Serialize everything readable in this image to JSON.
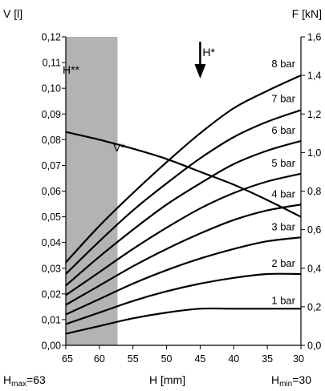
{
  "chart_data": {
    "type": "line",
    "x_label": "H [mm]",
    "x_ticks": [
      65,
      60,
      55,
      50,
      45,
      40,
      35,
      30
    ],
    "x_range": [
      65,
      30
    ],
    "y_left_label": "V [l]",
    "y_left_ticks": [
      "0,00",
      "0,01",
      "0,02",
      "0,03",
      "0,04",
      "0,05",
      "0,06",
      "0,07",
      "0,08",
      "0,09",
      "0,10",
      "0,11",
      "0,12"
    ],
    "y_left_range": [
      0,
      0.12
    ],
    "y_right_label": "F [kN]",
    "y_right_ticks": [
      "0,0",
      "0,2",
      "0,4",
      "0,6",
      "0,8",
      "1,0",
      "1,2",
      "1,4",
      "1,6"
    ],
    "y_right_range": [
      0,
      1.6
    ],
    "shaded_region": {
      "label": "H**",
      "x_from": 65,
      "x_to": 57.3,
      "color": "#b3b3b3"
    },
    "marker": {
      "label": "H*",
      "x": 45
    },
    "volume_curve": {
      "name": "V*",
      "axis": "left",
      "x": [
        65,
        60,
        55,
        50,
        45,
        40,
        35,
        30
      ],
      "y": [
        0.083,
        0.08,
        0.0765,
        0.0725,
        0.0675,
        0.0625,
        0.0565,
        0.05
      ]
    },
    "force_series": [
      {
        "name": "8 bar",
        "axis": "right",
        "x": [
          65,
          60,
          55,
          50,
          45,
          40,
          35,
          30
        ],
        "y": [
          0.43,
          0.62,
          0.79,
          0.95,
          1.1,
          1.23,
          1.32,
          1.4
        ]
      },
      {
        "name": "7 bar",
        "axis": "right",
        "x": [
          65,
          60,
          55,
          50,
          45,
          40,
          35,
          30
        ],
        "y": [
          0.37,
          0.54,
          0.7,
          0.84,
          0.97,
          1.08,
          1.16,
          1.22
        ]
      },
      {
        "name": "6 bar",
        "axis": "right",
        "x": [
          65,
          60,
          55,
          50,
          45,
          40,
          35,
          30
        ],
        "y": [
          0.31,
          0.46,
          0.6,
          0.73,
          0.84,
          0.94,
          1.01,
          1.06
        ]
      },
      {
        "name": "5 bar",
        "axis": "right",
        "x": [
          65,
          60,
          55,
          50,
          45,
          40,
          35,
          30
        ],
        "y": [
          0.26,
          0.38,
          0.5,
          0.61,
          0.71,
          0.79,
          0.85,
          0.89
        ]
      },
      {
        "name": "4 bar",
        "axis": "right",
        "x": [
          65,
          60,
          55,
          50,
          45,
          40,
          35,
          30
        ],
        "y": [
          0.21,
          0.31,
          0.41,
          0.5,
          0.58,
          0.65,
          0.7,
          0.73
        ]
      },
      {
        "name": "3 bar",
        "axis": "right",
        "x": [
          65,
          60,
          55,
          50,
          45,
          40,
          35,
          30
        ],
        "y": [
          0.16,
          0.24,
          0.32,
          0.39,
          0.45,
          0.5,
          0.54,
          0.56
        ]
      },
      {
        "name": "2 bar",
        "axis": "right",
        "x": [
          65,
          60,
          55,
          50,
          45,
          40,
          35,
          30
        ],
        "y": [
          0.11,
          0.17,
          0.23,
          0.28,
          0.32,
          0.35,
          0.37,
          0.37
        ]
      },
      {
        "name": "1 bar",
        "axis": "right",
        "x": [
          65,
          60,
          55,
          50,
          45,
          40,
          35,
          30
        ],
        "y": [
          0.06,
          0.1,
          0.14,
          0.17,
          0.19,
          0.19,
          0.19,
          0.19
        ]
      }
    ],
    "footer": {
      "hmax_base": "H",
      "hmax_sub": "max",
      "hmax_value": "=63",
      "hmin_base": "H",
      "hmin_sub": "min",
      "hmin_value": "=30"
    },
    "grid": false
  }
}
